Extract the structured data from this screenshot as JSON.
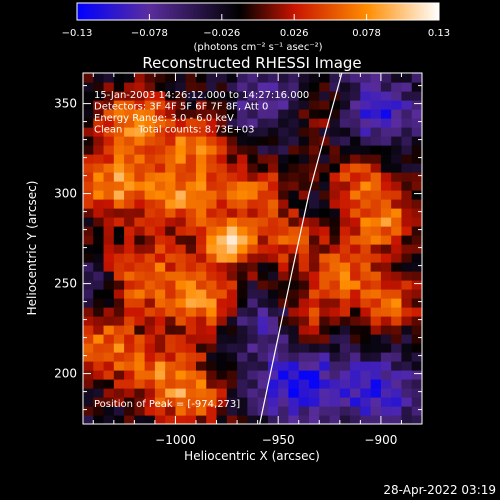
{
  "chart_data": {
    "type": "heatmap",
    "title": "Reconstructed RHESSI Image",
    "xlabel": "Heliocentric X (arcsec)",
    "ylabel": "Heliocentric Y (arcsec)",
    "xlim": [
      -1045,
      -880
    ],
    "ylim": [
      172,
      367
    ],
    "x_ticks": [
      -1000,
      -950,
      -900
    ],
    "y_ticks": [
      200,
      250,
      300,
      350
    ],
    "colorbar": {
      "min": -0.13,
      "max": 0.13,
      "ticks": [
        "-0.13",
        "-0.078",
        "-0.026",
        "0.026",
        "0.078",
        "0.13"
      ],
      "unit_label": "(photons cm⁻² s⁻¹ asec⁻²)",
      "colormap": [
        "#0000ff",
        "#5a2d9e",
        "#000000",
        "#c81400",
        "#ff8c00",
        "#ffffff"
      ]
    },
    "annotations": [
      "15-Jan-2003 14:26:12.000 to 14:27:16.000",
      "Detectors: 3F 4F 5F 6F 7F 8F, Att 0",
      "Energy Range: 3.0 - 6.0 keV",
      "Clean     Total counts: 8.73E+03"
    ],
    "peak_label": "Position of Peak = [-974,273]",
    "peak": [
      -974,
      273
    ],
    "limb_curve": [
      [
        -959,
        172
      ],
      [
        -951,
        215
      ],
      [
        -943,
        258
      ],
      [
        -935,
        300
      ],
      [
        -927,
        334
      ],
      [
        -919,
        367
      ]
    ],
    "blobs": [
      {
        "x": -974,
        "y": 273,
        "amp": 0.13,
        "r": 9
      },
      {
        "x": -995,
        "y": 300,
        "amp": 0.09,
        "r": 14
      },
      {
        "x": -1020,
        "y": 340,
        "amp": 0.1,
        "r": 12
      },
      {
        "x": -1030,
        "y": 305,
        "amp": 0.1,
        "r": 12
      },
      {
        "x": -1015,
        "y": 255,
        "amp": 0.09,
        "r": 14
      },
      {
        "x": -985,
        "y": 240,
        "amp": 0.09,
        "r": 12
      },
      {
        "x": -990,
        "y": 330,
        "amp": 0.07,
        "r": 12
      },
      {
        "x": -960,
        "y": 300,
        "amp": 0.08,
        "r": 10
      },
      {
        "x": -945,
        "y": 275,
        "amp": 0.07,
        "r": 10
      },
      {
        "x": -1035,
        "y": 215,
        "amp": 0.08,
        "r": 12
      },
      {
        "x": -1005,
        "y": 200,
        "amp": 0.08,
        "r": 14
      },
      {
        "x": -990,
        "y": 185,
        "amp": 0.07,
        "r": 10
      },
      {
        "x": -900,
        "y": 285,
        "amp": 0.09,
        "r": 12
      },
      {
        "x": -920,
        "y": 255,
        "amp": 0.08,
        "r": 12
      },
      {
        "x": -895,
        "y": 240,
        "amp": 0.08,
        "r": 10
      },
      {
        "x": -910,
        "y": 310,
        "amp": 0.07,
        "r": 10
      },
      {
        "x": -935,
        "y": 230,
        "amp": 0.06,
        "r": 10
      },
      {
        "x": -935,
        "y": 345,
        "amp": 0.05,
        "r": 10
      },
      {
        "x": -960,
        "y": 230,
        "amp": -0.06,
        "r": 10
      },
      {
        "x": -940,
        "y": 195,
        "amp": -0.09,
        "r": 16
      },
      {
        "x": -900,
        "y": 190,
        "amp": -0.08,
        "r": 14
      },
      {
        "x": -900,
        "y": 345,
        "amp": -0.08,
        "r": 14
      },
      {
        "x": -955,
        "y": 350,
        "amp": -0.07,
        "r": 12
      },
      {
        "x": -1040,
        "y": 250,
        "amp": -0.05,
        "r": 8
      }
    ]
  },
  "timestamp": "28-Apr-2022 03:19"
}
